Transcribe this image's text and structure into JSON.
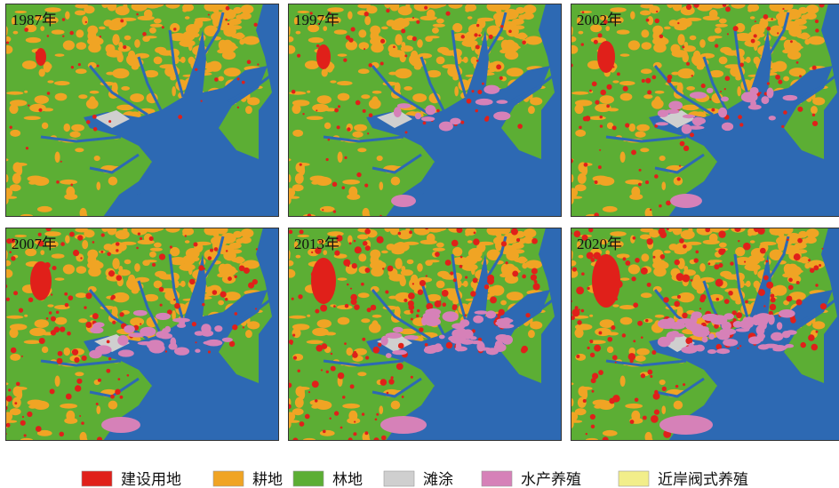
{
  "panels": [
    {
      "label": "1987年"
    },
    {
      "label": "1997年"
    },
    {
      "label": "2002年"
    },
    {
      "label": "2007年"
    },
    {
      "label": "2013年"
    },
    {
      "label": "2020年"
    }
  ],
  "legend": [
    {
      "label": "建设用地",
      "color": "#e0201a"
    },
    {
      "label": "耕地",
      "color": "#f0a424"
    },
    {
      "label": "林地",
      "color": "#5cae34"
    },
    {
      "label": "滩涂",
      "color": "#cfcfcf"
    },
    {
      "label": "水产养殖",
      "color": "#d681b8"
    },
    {
      "label": "近岸阀式养殖",
      "color": "#f2ee8a"
    }
  ]
}
